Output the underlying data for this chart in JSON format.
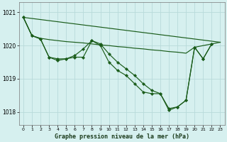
{
  "bg_color": "#d6f0ef",
  "grid_color": "#b8dada",
  "line_color": "#1a5c1a",
  "marker_color": "#1a5c1a",
  "title": "Graphe pression niveau de la mer (hPa)",
  "ylim": [
    1017.6,
    1021.3
  ],
  "xlim": [
    -0.5,
    23.5
  ],
  "yticks": [
    1018,
    1019,
    1020,
    1021
  ],
  "xticks": [
    0,
    1,
    2,
    3,
    4,
    5,
    6,
    7,
    8,
    9,
    10,
    11,
    12,
    13,
    14,
    15,
    16,
    17,
    18,
    19,
    20,
    21,
    22,
    23
  ],
  "series1_x": [
    0,
    1,
    2,
    3,
    4,
    5,
    6,
    7,
    8,
    9,
    10,
    11,
    12,
    13,
    14,
    15,
    16,
    17,
    18,
    19,
    20,
    21,
    22
  ],
  "series1_y": [
    1020.85,
    1020.3,
    1020.2,
    1019.65,
    1019.55,
    1019.6,
    1019.65,
    1019.65,
    1020.15,
    1020.0,
    1019.5,
    1019.25,
    1019.1,
    1018.85,
    1018.6,
    1018.55,
    1018.55,
    1018.1,
    1018.15,
    1018.35,
    1019.95,
    1019.6,
    1020.05
  ],
  "series2_x": [
    0,
    1,
    2,
    3,
    4,
    5,
    6,
    7,
    8,
    9,
    10,
    11,
    12,
    13,
    14,
    15,
    16,
    17,
    18,
    19,
    20,
    21,
    22
  ],
  "series2_y": [
    1020.85,
    1020.3,
    1020.2,
    1019.65,
    1019.6,
    1019.6,
    1019.7,
    1019.9,
    1020.15,
    1020.05,
    1019.75,
    1019.5,
    1019.3,
    1019.1,
    1018.85,
    1018.65,
    1018.55,
    1018.05,
    1018.15,
    1018.35,
    1019.95,
    1019.6,
    1020.05
  ],
  "series3_x": [
    0,
    1,
    2,
    3,
    4,
    5,
    6,
    7,
    8,
    9,
    10,
    11,
    12,
    13,
    14,
    15,
    16,
    17,
    18,
    19,
    20,
    21,
    22,
    23
  ],
  "series3_y": [
    1020.85,
    1020.3,
    1020.22,
    1020.18,
    1020.15,
    1020.12,
    1020.1,
    1020.08,
    1020.05,
    1020.02,
    1020.0,
    1019.97,
    1019.95,
    1019.92,
    1019.9,
    1019.87,
    1019.85,
    1019.82,
    1019.8,
    1019.77,
    1019.95,
    1020.0,
    1020.05,
    1020.1
  ],
  "series4_x": [
    0,
    23
  ],
  "series4_y": [
    1020.85,
    1020.1
  ]
}
